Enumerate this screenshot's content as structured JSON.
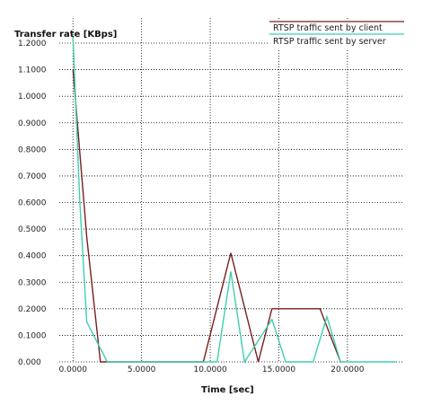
{
  "chart_data": {
    "type": "line",
    "title": "",
    "ylabel": "Transfer rate [KBps]",
    "xlabel": "Time [sec]",
    "xlim": [
      -1,
      24
    ],
    "ylim": [
      0,
      1.2
    ],
    "x_ticks": [
      0,
      5,
      10,
      15,
      20
    ],
    "x_tick_labels": [
      "0.0000",
      "5.0000",
      "10.0000",
      "15.0000",
      "20.0000"
    ],
    "y_ticks": [
      0,
      0.1,
      0.2,
      0.3,
      0.4,
      0.5,
      0.6,
      0.7,
      0.8,
      0.9,
      1.0,
      1.1,
      1.2
    ],
    "y_tick_labels": [
      "0.000",
      "0.1000",
      "0.2000",
      "0.3000",
      "0.4000",
      "0.5000",
      "0.6000",
      "0.7000",
      "0.8000",
      "0.9000",
      "1.0000",
      "1.1000",
      "1.2000"
    ],
    "grid": true,
    "legend_position": "top-right",
    "series": [
      {
        "name": "RTSP traffic sent by client",
        "color": "#7a1f1f",
        "points": [
          [
            0,
            1.1
          ],
          [
            1,
            0.47
          ],
          [
            2,
            0.0
          ],
          [
            9.5,
            0.0
          ],
          [
            11.5,
            0.41
          ],
          [
            13.5,
            0.0
          ],
          [
            14.5,
            0.2
          ],
          [
            18,
            0.2
          ],
          [
            19.5,
            0.0
          ]
        ]
      },
      {
        "name": "RTSP traffic sent by server",
        "color": "#3fcfb0",
        "points": [
          [
            0,
            1.22
          ],
          [
            0.5,
            0.6
          ],
          [
            1,
            0.15
          ],
          [
            2.5,
            0.0
          ],
          [
            10.5,
            0.0
          ],
          [
            11.5,
            0.34
          ],
          [
            12.5,
            0.0
          ],
          [
            14.5,
            0.16
          ],
          [
            15.5,
            0.0
          ],
          [
            17.5,
            0.0
          ],
          [
            18.5,
            0.17
          ],
          [
            19.5,
            0.0
          ],
          [
            23.5,
            0.0
          ]
        ]
      }
    ]
  }
}
